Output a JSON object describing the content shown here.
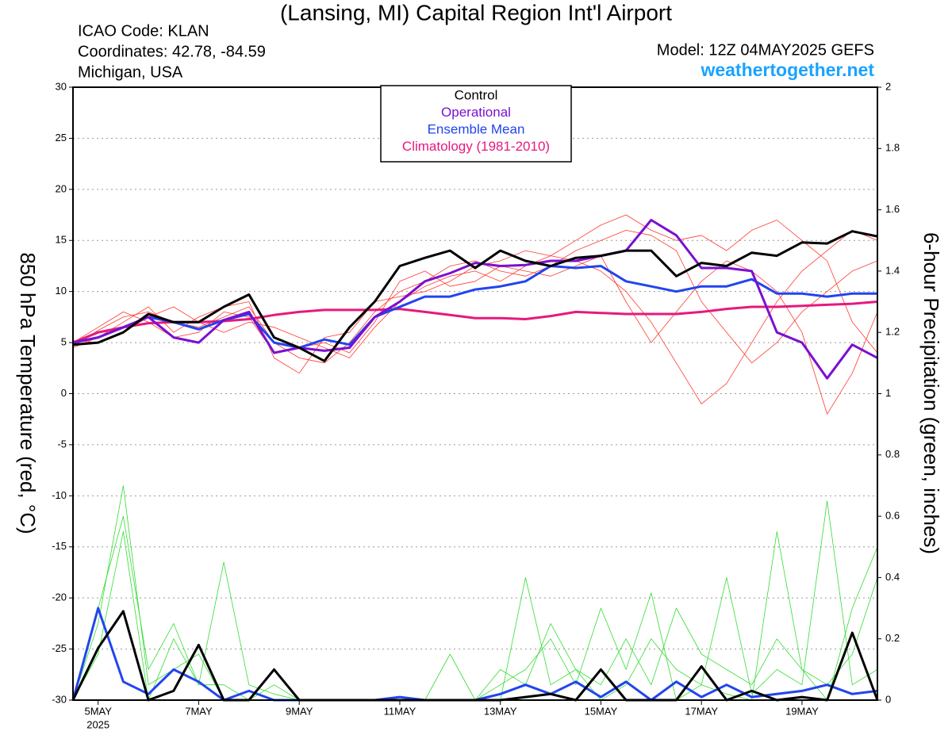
{
  "chart_data": {
    "type": "line",
    "title": "(Lansing, MI) Capital Region Int'l Airport",
    "annotations": [
      "ICAO Code: KLAN",
      "Coordinates: 42.78, -84.59",
      "Michigan, USA",
      "Model: 12Z 04MAY2025 GEFS",
      "weathertogether.net"
    ],
    "x_sublabel": "2025",
    "ylabel": "850 hPa Temperature (red, °C)",
    "y2label": "6-hour Precipitation (green, inches)",
    "x": [
      4.5,
      5,
      5.5,
      6,
      6.5,
      7,
      7.5,
      8,
      8.5,
      9,
      9.5,
      10,
      10.5,
      11,
      11.5,
      12,
      12.5,
      13,
      13.5,
      14,
      14.5,
      15,
      15.5,
      16,
      16.5,
      17,
      17.5,
      18,
      18.5,
      19,
      19.5,
      20,
      20.5
    ],
    "xlim": [
      4.5,
      20.5
    ],
    "xticks": [
      {
        "value": 5,
        "label": "5MAY"
      },
      {
        "value": 7,
        "label": "7MAY"
      },
      {
        "value": 9,
        "label": "9MAY"
      },
      {
        "value": 11,
        "label": "11MAY"
      },
      {
        "value": 13,
        "label": "13MAY"
      },
      {
        "value": 15,
        "label": "15MAY"
      },
      {
        "value": 17,
        "label": "17MAY"
      },
      {
        "value": 19,
        "label": "19MAY"
      }
    ],
    "ylim": [
      -30,
      30
    ],
    "yticks": [
      -30,
      -25,
      -20,
      -15,
      -10,
      -5,
      0,
      5,
      10,
      15,
      20,
      25,
      30
    ],
    "y2lim": [
      0,
      2
    ],
    "y2ticks": [
      0,
      0.2,
      0.4,
      0.6,
      0.8,
      1,
      1.2,
      1.4,
      1.6,
      1.8,
      2
    ],
    "grid": true,
    "legend": "top",
    "series": [
      {
        "name": "Control",
        "color": "#000000",
        "values": [
          4.8,
          5.0,
          6.0,
          7.8,
          7.0,
          7.0,
          8.5,
          9.7,
          5.5,
          4.5,
          3.2,
          6.5,
          9.0,
          12.5,
          13.3,
          14.0,
          12.3,
          14.0,
          13.0,
          12.5,
          13.3,
          13.5,
          14.0,
          14.0,
          11.5,
          12.8,
          12.5,
          13.8,
          13.5,
          14.8,
          14.7,
          15.9,
          15.4
        ]
      },
      {
        "name": "Operational",
        "color": "#7a10d0",
        "values": [
          5.0,
          5.5,
          6.5,
          7.5,
          5.5,
          5.0,
          7.2,
          8.0,
          4.0,
          4.5,
          4.2,
          4.5,
          7.5,
          9.0,
          11.0,
          11.8,
          12.8,
          12.5,
          12.6,
          13.0,
          13.0,
          13.5,
          14.0,
          17.0,
          15.5,
          12.3,
          12.3,
          12.0,
          6.0,
          5.0,
          1.5,
          4.8,
          3.5
        ]
      },
      {
        "name": "Ensemble Mean",
        "color": "#2244ee",
        "values": [
          5.0,
          5.5,
          6.5,
          7.5,
          7.0,
          6.3,
          7.2,
          7.8,
          5.0,
          4.5,
          5.3,
          4.8,
          7.5,
          8.5,
          9.5,
          9.5,
          10.2,
          10.5,
          11.0,
          12.5,
          12.3,
          12.5,
          11.0,
          10.5,
          10.0,
          10.5,
          10.5,
          11.2,
          9.8,
          9.8,
          9.5,
          9.8,
          9.8
        ]
      },
      {
        "name": "Climatology (1981-2010)",
        "color": "#e6197d",
        "values": [
          5.0,
          6.0,
          6.5,
          6.9,
          7.0,
          7.0,
          7.1,
          7.3,
          7.7,
          8.0,
          8.2,
          8.2,
          8.2,
          8.3,
          8.0,
          7.7,
          7.4,
          7.4,
          7.3,
          7.6,
          8.0,
          7.9,
          7.8,
          7.8,
          7.8,
          8.0,
          8.3,
          8.5,
          8.5,
          8.6,
          8.7,
          8.8,
          9.0
        ]
      },
      {
        "color": "#000000",
        "axis": "y2",
        "values": [
          0,
          0.17,
          0.29,
          0,
          0.03,
          0.18,
          0,
          0,
          0.1,
          0,
          0,
          0,
          0,
          0,
          0,
          0,
          0,
          0,
          0.01,
          0.02,
          0,
          0.1,
          0,
          0,
          0,
          0.11,
          0,
          0.03,
          0,
          0.01,
          0,
          0.22,
          0
        ]
      },
      {
        "color": "#2244ee",
        "axis": "y2",
        "values": [
          0,
          0.3,
          0.06,
          0.02,
          0.1,
          0.06,
          0,
          0.03,
          0,
          0,
          0,
          0,
          0,
          0.01,
          0,
          0,
          0,
          0.02,
          0.05,
          0.02,
          0.06,
          0.01,
          0.06,
          0,
          0.06,
          0.01,
          0.05,
          0.01,
          0.02,
          0.03,
          0.05,
          0.02,
          0.03
        ]
      },
      {
        "color": "#ff3b30",
        "values": [
          4.6,
          6.2,
          7.5,
          8.0,
          7.0,
          6.5,
          7.5,
          8.5,
          5.0,
          3.5,
          3.0,
          5.0,
          8.0,
          10.0,
          11.0,
          12.5,
          13.0,
          12.0,
          11.5,
          12.5,
          14.0,
          15.0,
          16.0,
          15.5,
          14.0,
          9.0,
          6.0,
          3.0,
          5.0,
          8.0,
          10.0,
          12.0,
          13.0
        ]
      },
      {
        "color": "#ff3b30",
        "values": [
          5.2,
          5.0,
          6.0,
          7.5,
          8.5,
          7.0,
          6.0,
          7.0,
          6.5,
          5.5,
          4.5,
          3.5,
          6.5,
          9.0,
          10.5,
          11.5,
          12.0,
          11.0,
          12.5,
          13.5,
          13.0,
          12.0,
          10.0,
          7.0,
          3.0,
          -1.0,
          1.0,
          5.0,
          9.0,
          12.0,
          14.0,
          16.0,
          15.0
        ]
      },
      {
        "color": "#ff3b30",
        "values": [
          4.5,
          5.5,
          7.0,
          8.5,
          6.0,
          7.5,
          8.5,
          9.0,
          3.5,
          2.0,
          5.5,
          6.0,
          9.0,
          9.5,
          10.0,
          11.0,
          12.5,
          13.0,
          14.0,
          13.5,
          15.0,
          16.5,
          17.5,
          16.0,
          15.0,
          15.5,
          14.0,
          16.0,
          17.0,
          15.0,
          13.0,
          7.0,
          4.0
        ]
      },
      {
        "color": "#ff3b30",
        "values": [
          5.0,
          6.5,
          8.0,
          7.0,
          5.5,
          6.0,
          8.0,
          7.5,
          4.0,
          4.5,
          5.0,
          4.0,
          7.0,
          11.0,
          12.0,
          10.5,
          11.0,
          12.5,
          12.0,
          11.5,
          12.5,
          13.5,
          9.0,
          5.0,
          8.0,
          11.0,
          13.0,
          12.0,
          10.0,
          6.0,
          -2.0,
          2.0,
          8.0
        ]
      },
      {
        "color": "#33dd33",
        "axis": "y2",
        "values": [
          0,
          0.25,
          0.7,
          0.05,
          0.1,
          0.15,
          0,
          0,
          0,
          0,
          0,
          0,
          0,
          0,
          0,
          0,
          0,
          0,
          0.4,
          0.05,
          0.1,
          0,
          0.05,
          0.2,
          0.1,
          0.05,
          0.02,
          0,
          0.55,
          0.1,
          0,
          0.3,
          0.5
        ]
      },
      {
        "color": "#33dd33",
        "axis": "y2",
        "values": [
          0,
          0.15,
          0.55,
          0,
          0.2,
          0.05,
          0.45,
          0.05,
          0.02,
          0,
          0,
          0,
          0,
          0,
          0,
          0,
          0,
          0.05,
          0.1,
          0.2,
          0.05,
          0.3,
          0.1,
          0.35,
          0,
          0.05,
          0.4,
          0.02,
          0.1,
          0.05,
          0.65,
          0.05,
          0.1
        ]
      },
      {
        "color": "#33dd33",
        "axis": "y2",
        "values": [
          0,
          0.3,
          0.6,
          0.1,
          0.25,
          0.05,
          0.05,
          0,
          0.05,
          0,
          0,
          0,
          0,
          0,
          0,
          0.15,
          0,
          0.1,
          0.05,
          0.25,
          0.1,
          0.05,
          0.2,
          0.05,
          0.3,
          0.15,
          0.1,
          0.05,
          0.2,
          0.1,
          0.05,
          0.15,
          0.4
        ]
      }
    ]
  }
}
